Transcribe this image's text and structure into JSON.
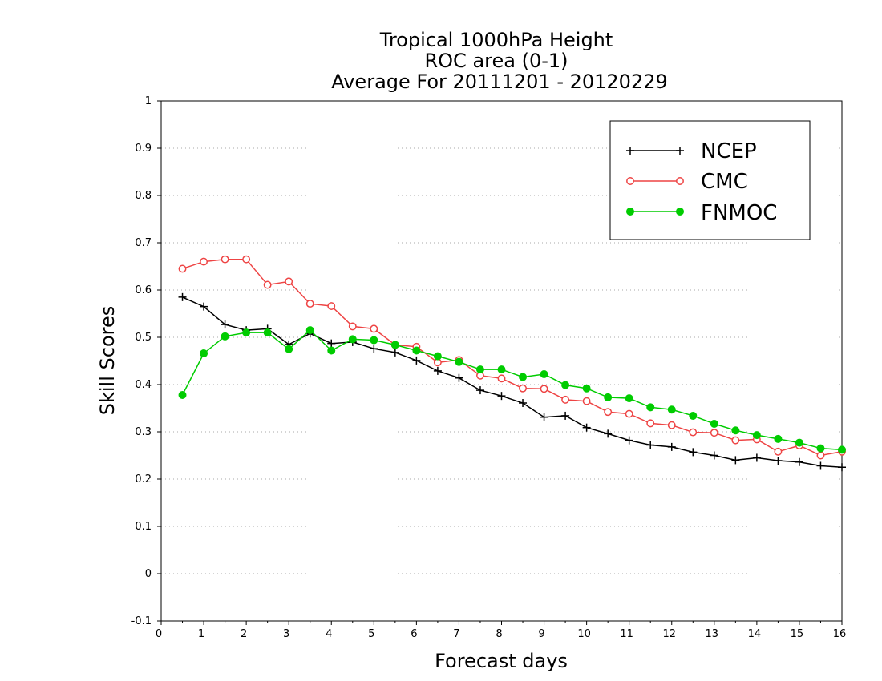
{
  "chart_data": {
    "type": "line",
    "title": [
      "Tropical 1000hPa Height",
      "ROC area (0-1)",
      "Average For 20111201 - 20120229"
    ],
    "xlabel": "Forecast days",
    "ylabel": "Skill Scores",
    "xlim": [
      0,
      16
    ],
    "ylim": [
      -0.1,
      1
    ],
    "xticks": [
      0,
      1,
      2,
      3,
      4,
      5,
      6,
      7,
      8,
      9,
      10,
      11,
      12,
      13,
      14,
      15,
      16
    ],
    "yticks": [
      -0.1,
      0,
      0.1,
      0.2,
      0.3,
      0.4,
      0.5,
      0.6,
      0.7,
      0.8,
      0.9,
      1
    ],
    "ytick_labels": [
      "-0.1",
      "0",
      "0.1",
      "0.2",
      "0.3",
      "0.4",
      "0.5",
      "0.6",
      "0.7",
      "0.8",
      "0.9",
      "1"
    ],
    "grid": true,
    "legend": "top-right",
    "x": [
      0.5,
      1,
      1.5,
      2,
      2.5,
      3,
      3.5,
      4,
      4.5,
      5,
      5.5,
      6,
      6.5,
      7,
      7.5,
      8,
      8.5,
      9,
      9.5,
      10,
      10.5,
      11,
      11.5,
      12,
      12.5,
      13,
      13.5,
      14,
      14.5,
      15,
      15.5,
      16
    ],
    "series": [
      {
        "name": "NCEP",
        "color": "#000000",
        "marker": "plus",
        "values": [
          0.585,
          0.565,
          0.527,
          0.515,
          0.518,
          0.485,
          0.508,
          0.487,
          0.49,
          0.476,
          0.468,
          0.451,
          0.429,
          0.414,
          0.388,
          0.376,
          0.361,
          0.331,
          0.334,
          0.309,
          0.296,
          0.282,
          0.272,
          0.268,
          0.257,
          0.25,
          0.24,
          0.245,
          0.239,
          0.236,
          0.228,
          0.225
        ]
      },
      {
        "name": "CMC",
        "color": "#ee4444",
        "marker": "open-circle",
        "values": [
          0.645,
          0.66,
          0.665,
          0.665,
          0.611,
          0.618,
          0.571,
          0.566,
          0.523,
          0.518,
          0.484,
          0.48,
          0.447,
          0.452,
          0.419,
          0.413,
          0.392,
          0.391,
          0.368,
          0.365,
          0.342,
          0.338,
          0.318,
          0.314,
          0.299,
          0.298,
          0.282,
          0.284,
          0.258,
          0.271,
          0.25,
          0.258
        ]
      },
      {
        "name": "FNMOC",
        "color": "#00cc00",
        "marker": "filled-circle",
        "values": [
          0.378,
          0.466,
          0.502,
          0.51,
          0.51,
          0.475,
          0.515,
          0.472,
          0.496,
          0.494,
          0.484,
          0.472,
          0.46,
          0.448,
          0.432,
          0.432,
          0.416,
          0.422,
          0.399,
          0.392,
          0.373,
          0.371,
          0.352,
          0.347,
          0.334,
          0.317,
          0.303,
          0.293,
          0.285,
          0.277,
          0.265,
          0.262
        ]
      }
    ]
  }
}
